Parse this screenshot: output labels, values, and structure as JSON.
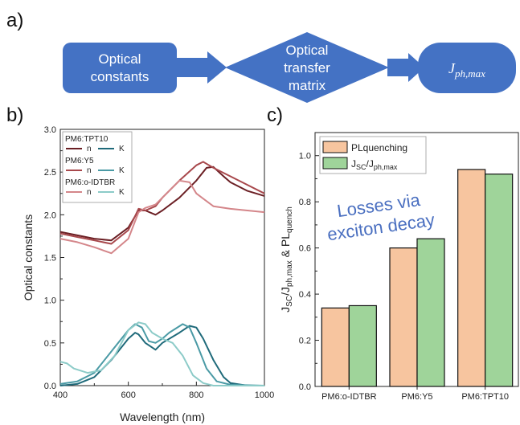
{
  "panels": {
    "a": "a)",
    "b": "b)",
    "c": "c)"
  },
  "flow": {
    "box1_line1": "Optical",
    "box1_line2": "constants",
    "diamond_line1": "Optical",
    "diamond_line2": "transfer",
    "diamond_line3": "matrix",
    "output": "Jph,max",
    "color": "#4472c4"
  },
  "chart_data": [
    {
      "type": "line",
      "panel": "b",
      "xlabel": "Wavelength (nm)",
      "ylabel": "Optical constants",
      "xlim": [
        400,
        1000
      ],
      "ylim": [
        0,
        3.0
      ],
      "xticks": [
        400,
        600,
        800,
        1000
      ],
      "yticks": [
        0.0,
        0.5,
        1.0,
        1.5,
        2.0,
        2.5,
        3.0
      ],
      "legend_placement": "top-left",
      "legend_groups": [
        {
          "title": "PM6:TPT10",
          "n_label": "n",
          "k_label": "K",
          "n_color": "#6b1f24",
          "k_color": "#1f6a7a"
        },
        {
          "title": "PM6:Y5",
          "n_label": "n",
          "k_label": "K",
          "n_color": "#a8484c",
          "k_color": "#4a9aa5"
        },
        {
          "title": "PM6:o-IDTBR",
          "n_label": "n",
          "k_label": "K",
          "n_color": "#d4868a",
          "k_color": "#8ccbc8"
        }
      ],
      "series": [
        {
          "color": "#6b1f24",
          "x": [
            400,
            450,
            500,
            550,
            600,
            630,
            650,
            680,
            700,
            750,
            800,
            830,
            850,
            880,
            900,
            950,
            1000
          ],
          "y": [
            1.8,
            1.76,
            1.72,
            1.7,
            1.85,
            2.05,
            2.05,
            2.0,
            2.05,
            2.2,
            2.4,
            2.55,
            2.56,
            2.45,
            2.38,
            2.28,
            2.22
          ]
        },
        {
          "color": "#a8484c",
          "x": [
            400,
            450,
            500,
            550,
            600,
            630,
            650,
            680,
            700,
            750,
            800,
            820,
            850,
            900,
            950,
            1000
          ],
          "y": [
            1.78,
            1.74,
            1.7,
            1.66,
            1.82,
            2.07,
            2.05,
            2.1,
            2.2,
            2.4,
            2.58,
            2.62,
            2.55,
            2.45,
            2.35,
            2.25
          ]
        },
        {
          "color": "#d4868a",
          "x": [
            400,
            450,
            500,
            550,
            600,
            630,
            650,
            680,
            700,
            750,
            780,
            800,
            850,
            900,
            950,
            1000
          ],
          "y": [
            1.72,
            1.68,
            1.62,
            1.55,
            1.72,
            2.03,
            2.08,
            2.12,
            2.2,
            2.4,
            2.38,
            2.25,
            2.1,
            2.07,
            2.05,
            2.03
          ]
        },
        {
          "color": "#1f6a7a",
          "x": [
            400,
            450,
            500,
            550,
            600,
            620,
            630,
            650,
            680,
            700,
            750,
            780,
            800,
            820,
            850,
            880,
            900,
            950,
            1000
          ],
          "y": [
            0.0,
            0.02,
            0.1,
            0.3,
            0.55,
            0.62,
            0.6,
            0.5,
            0.42,
            0.5,
            0.62,
            0.7,
            0.68,
            0.55,
            0.3,
            0.1,
            0.03,
            0.0,
            0.0
          ]
        },
        {
          "color": "#4a9aa5",
          "x": [
            400,
            450,
            500,
            550,
            600,
            620,
            640,
            660,
            680,
            700,
            720,
            760,
            780,
            800,
            830,
            860,
            900,
            1000
          ],
          "y": [
            0.02,
            0.05,
            0.15,
            0.4,
            0.65,
            0.72,
            0.68,
            0.52,
            0.5,
            0.55,
            0.62,
            0.72,
            0.68,
            0.5,
            0.2,
            0.05,
            0.01,
            0.0
          ]
        },
        {
          "color": "#8ccbc8",
          "x": [
            400,
            420,
            440,
            480,
            520,
            560,
            600,
            630,
            650,
            670,
            700,
            730,
            760,
            790,
            820,
            850,
            1000
          ],
          "y": [
            0.28,
            0.26,
            0.2,
            0.15,
            0.18,
            0.35,
            0.65,
            0.74,
            0.72,
            0.62,
            0.55,
            0.5,
            0.35,
            0.12,
            0.03,
            0.0,
            0.0
          ]
        }
      ]
    },
    {
      "type": "bar",
      "panel": "c",
      "ylabel": "JSC/Jph,max & PLquench",
      "categories": [
        "PM6:o-IDTBR",
        "PM6:Y5",
        "PM6:TPT10"
      ],
      "ylim": [
        0,
        1.1
      ],
      "yticks": [
        0.0,
        0.2,
        0.4,
        0.6,
        0.8,
        1.0
      ],
      "legend_placement": "top-left",
      "series": [
        {
          "name": "PLquenching",
          "color": "#f7c59f",
          "values": [
            0.34,
            0.6,
            0.94
          ]
        },
        {
          "name": "JSC/Jph,max",
          "color": "#9fd49a",
          "values": [
            0.35,
            0.64,
            0.92
          ]
        }
      ],
      "annotation_line1": "Losses via",
      "annotation_line2": "exciton decay"
    }
  ]
}
